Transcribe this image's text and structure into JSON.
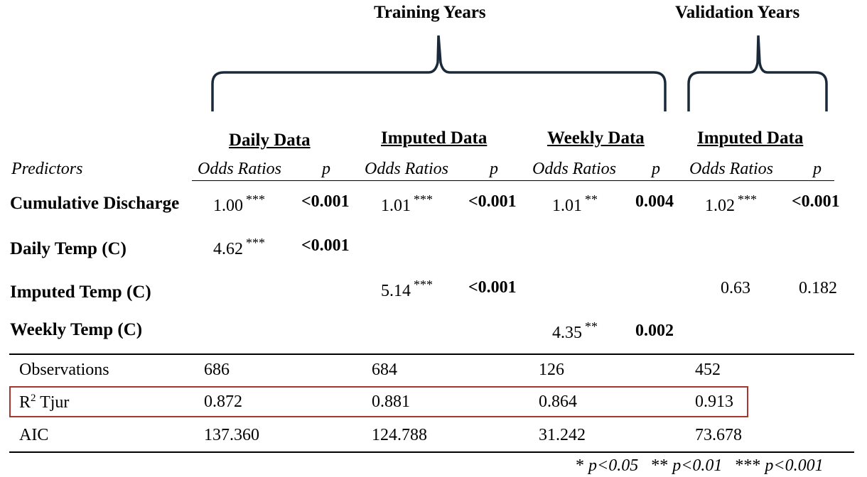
{
  "groups": {
    "training": "Training Years",
    "validation": "Validation Years"
  },
  "columns": [
    "Daily Data",
    "Imputed Data",
    "Weekly Data",
    "Imputed Data"
  ],
  "subheaders": {
    "predictors": "Predictors",
    "odds": "Odds Ratios",
    "p": "p"
  },
  "rows": [
    {
      "predictor": "Cumulative Discharge",
      "cells": [
        {
          "or": "1.00",
          "stars": "***",
          "p": "<0.001"
        },
        {
          "or": "1.01",
          "stars": "***",
          "p": "<0.001"
        },
        {
          "or": "1.01",
          "stars": "**",
          "p": "0.004"
        },
        {
          "or": "1.02",
          "stars": "***",
          "p": "<0.001"
        }
      ]
    },
    {
      "predictor": "Daily Temp (C)",
      "cells": [
        {
          "or": "4.62",
          "stars": "***",
          "p": "<0.001"
        }
      ]
    },
    {
      "predictor": "Imputed Temp (C)",
      "cells": [
        {
          "or": "5.14",
          "stars": "***",
          "p": "<0.001"
        },
        {
          "or": "0.63",
          "stars": "",
          "p": "0.182"
        }
      ]
    },
    {
      "predictor": "Weekly Temp (C)",
      "cells": [
        {
          "or": "4.35",
          "stars": "**",
          "p": "0.002"
        }
      ]
    }
  ],
  "stats": {
    "observations": {
      "label": "Observations",
      "values": [
        "686",
        "684",
        "126",
        "452"
      ]
    },
    "r2": {
      "label_r": "R",
      "label_sup": "2",
      "label_rest": " Tjur",
      "values": [
        "0.872",
        "0.881",
        "0.864",
        "0.913"
      ]
    },
    "aic": {
      "label": "AIC",
      "values": [
        "137.360",
        "124.788",
        "31.242",
        "73.678"
      ]
    }
  },
  "footnote": {
    "s1": "*",
    "s1p": "p<0.05",
    "s2": "**",
    "s2p": "p<0.01",
    "s3": "***",
    "s3p": "p<0.001"
  },
  "colors": {
    "highlight_border": "#a83530",
    "bracket": "#1a2a3a"
  }
}
